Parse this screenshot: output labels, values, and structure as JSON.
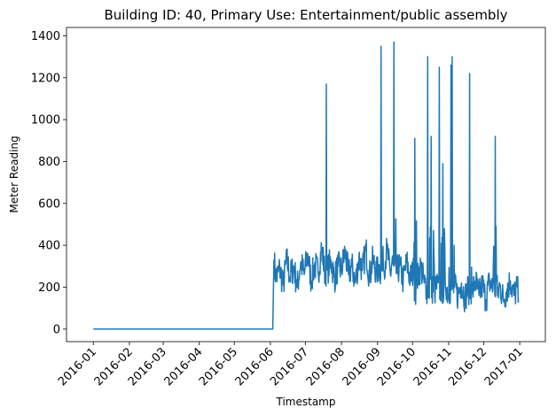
{
  "chart_data": {
    "type": "line",
    "title": "Building ID: 40, Primary Use: Entertainment/public assembly",
    "xlabel": "Timestamp",
    "ylabel": "Meter Reading",
    "xlim": [
      "2015-12-09",
      "2017-01-23"
    ],
    "ylim": [
      -60,
      1440
    ],
    "x_ticks": [
      "2016-01",
      "2016-02",
      "2016-03",
      "2016-04",
      "2016-05",
      "2016-06",
      "2016-07",
      "2016-08",
      "2016-09",
      "2016-10",
      "2016-11",
      "2016-12",
      "2017-01"
    ],
    "y_ticks": [
      0,
      200,
      400,
      600,
      800,
      1000,
      1200,
      1400
    ],
    "grid": false,
    "legend": "none",
    "series": [
      {
        "color": "#1f77b4",
        "x": [
          "2016-01-01",
          "2016-06-03",
          "2016-06-04",
          "2016-06-06",
          "2016-06-09",
          "2016-06-12",
          "2016-06-15",
          "2016-06-18",
          "2016-06-21",
          "2016-06-24",
          "2016-06-27",
          "2016-06-30",
          "2016-07-03",
          "2016-07-06",
          "2016-07-09",
          "2016-07-12",
          "2016-07-15",
          "2016-07-18",
          "2016-07-19",
          "2016-07-20",
          "2016-07-23",
          "2016-07-26",
          "2016-07-29",
          "2016-08-01",
          "2016-08-04",
          "2016-08-07",
          "2016-08-10",
          "2016-08-13",
          "2016-08-16",
          "2016-08-19",
          "2016-08-22",
          "2016-08-25",
          "2016-08-28",
          "2016-08-31",
          "2016-09-03",
          "2016-09-04",
          "2016-09-06",
          "2016-09-09",
          "2016-09-12",
          "2016-09-14",
          "2016-09-15",
          "2016-09-17",
          "2016-09-20",
          "2016-09-23",
          "2016-09-26",
          "2016-09-29",
          "2016-10-02",
          "2016-10-03",
          "2016-10-05",
          "2016-10-08",
          "2016-10-11",
          "2016-10-13",
          "2016-10-14",
          "2016-10-16",
          "2016-10-17",
          "2016-10-20",
          "2016-10-23",
          "2016-10-24",
          "2016-10-26",
          "2016-10-27",
          "2016-10-29",
          "2016-11-01",
          "2016-11-03",
          "2016-11-04",
          "2016-11-06",
          "2016-11-09",
          "2016-11-12",
          "2016-11-15",
          "2016-11-18",
          "2016-11-19",
          "2016-11-21",
          "2016-11-24",
          "2016-11-27",
          "2016-11-30",
          "2016-12-03",
          "2016-12-06",
          "2016-12-09",
          "2016-12-11",
          "2016-12-12",
          "2016-12-13",
          "2016-12-15",
          "2016-12-18",
          "2016-12-21",
          "2016-12-24",
          "2016-12-27",
          "2016-12-30",
          "2016-12-31"
        ],
        "y": [
          0,
          0,
          330,
          240,
          290,
          210,
          330,
          250,
          300,
          200,
          320,
          260,
          360,
          230,
          310,
          270,
          390,
          260,
          1170,
          280,
          330,
          240,
          300,
          280,
          370,
          260,
          300,
          220,
          340,
          280,
          380,
          250,
          330,
          270,
          300,
          1350,
          280,
          380,
          260,
          350,
          1370,
          270,
          300,
          230,
          320,
          240,
          280,
          910,
          230,
          300,
          220,
          200,
          1300,
          240,
          920,
          180,
          220,
          1250,
          160,
          790,
          240,
          150,
          1260,
          1300,
          200,
          160,
          220,
          150,
          200,
          1220,
          170,
          230,
          160,
          210,
          140,
          230,
          190,
          920,
          250,
          160,
          210,
          140,
          190,
          230,
          160,
          200,
          140
        ]
      }
    ]
  }
}
